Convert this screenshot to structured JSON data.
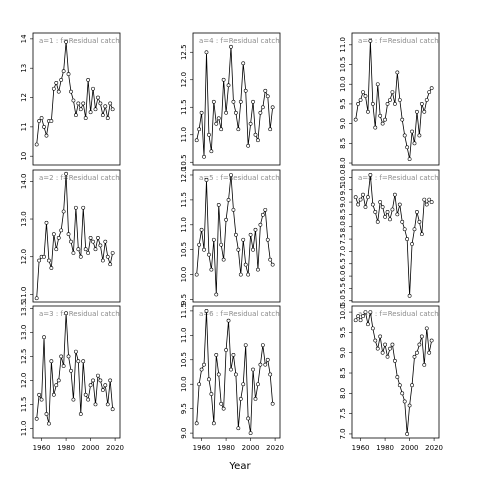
{
  "xlabel": "Year",
  "chart_data": [
    {
      "type": "line",
      "title": "a=1 : f=Residual catch",
      "color": "#000000",
      "x": [
        1956,
        1958,
        1960,
        1962,
        1964,
        1966,
        1968,
        1970,
        1972,
        1974,
        1976,
        1978,
        1980,
        1982,
        1984,
        1986,
        1988,
        1990,
        1992,
        1994,
        1996,
        1998,
        2000,
        2002,
        2004,
        2006,
        2008,
        2010,
        2012,
        2014,
        2016,
        2018
      ],
      "values": [
        10.4,
        11.2,
        11.3,
        11.0,
        10.7,
        11.2,
        11.2,
        12.3,
        12.5,
        12.2,
        12.6,
        12.9,
        13.9,
        12.8,
        12.2,
        11.9,
        11.4,
        11.8,
        11.6,
        11.8,
        11.3,
        12.6,
        11.5,
        12.3,
        11.6,
        12.0,
        11.8,
        11.4,
        11.7,
        11.3,
        11.8,
        11.6
      ],
      "xlim": [
        1953,
        2024
      ],
      "ylim": [
        9.7,
        14.2
      ],
      "yticks": [
        10,
        11,
        12,
        13,
        14
      ]
    },
    {
      "type": "line",
      "title": "a=2 : f=Residual catch",
      "color": "#000000",
      "x": [
        1956,
        1958,
        1960,
        1962,
        1964,
        1966,
        1968,
        1970,
        1972,
        1974,
        1976,
        1978,
        1980,
        1982,
        1984,
        1986,
        1988,
        1990,
        1992,
        1994,
        1996,
        1998,
        2000,
        2002,
        2004,
        2006,
        2008,
        2010,
        2012,
        2014,
        2016,
        2018
      ],
      "values": [
        10.9,
        11.9,
        12.0,
        12.0,
        12.9,
        11.9,
        11.7,
        12.6,
        12.2,
        12.5,
        12.7,
        13.2,
        14.2,
        12.6,
        12.4,
        12.1,
        13.3,
        12.2,
        12.0,
        13.3,
        12.2,
        12.1,
        12.5,
        12.4,
        12.2,
        12.5,
        12.3,
        11.9,
        12.4,
        12.0,
        11.8,
        12.1
      ],
      "xlim": [
        1953,
        2024
      ],
      "ylim": [
        10.8,
        14.3
      ],
      "yticks": [
        {
          "value": 11,
          "label": "11.0"
        },
        {
          "value": 12,
          "label": "12.0"
        },
        {
          "value": 13,
          "label": "13.0"
        },
        {
          "value": 14,
          "label": "14.0"
        }
      ]
    },
    {
      "type": "line",
      "title": "a=3 : f=Residual catch",
      "color": "#000000",
      "x": [
        1956,
        1958,
        1960,
        1962,
        1964,
        1966,
        1968,
        1970,
        1972,
        1974,
        1976,
        1978,
        1980,
        1982,
        1984,
        1986,
        1988,
        1990,
        1992,
        1994,
        1996,
        1998,
        2000,
        2002,
        2004,
        2006,
        2008,
        2010,
        2012,
        2014,
        2016,
        2018
      ],
      "values": [
        11.2,
        11.7,
        11.6,
        12.9,
        11.3,
        11.1,
        12.4,
        11.7,
        11.9,
        12.0,
        12.5,
        12.3,
        13.4,
        12.5,
        12.2,
        11.6,
        12.6,
        12.4,
        11.3,
        12.4,
        11.7,
        11.6,
        11.9,
        12.0,
        11.5,
        12.1,
        12.0,
        11.8,
        11.9,
        11.5,
        12.0,
        11.4
      ],
      "xlim": [
        1953,
        2024
      ],
      "ylim": [
        10.8,
        13.55
      ],
      "yticks": [
        {
          "value": 11,
          "label": "11.0"
        },
        11.5,
        {
          "value": 12,
          "label": "12.0"
        },
        12.5,
        {
          "value": 13,
          "label": "13.0"
        },
        13.5
      ],
      "xticks": [
        1960,
        1980,
        2000,
        2020
      ]
    },
    {
      "type": "line",
      "title": "a=4 : f=Residual catch",
      "color": "#000000",
      "x": [
        1956,
        1958,
        1960,
        1962,
        1964,
        1966,
        1968,
        1970,
        1972,
        1974,
        1976,
        1978,
        1980,
        1982,
        1984,
        1986,
        1988,
        1990,
        1992,
        1994,
        1996,
        1998,
        2000,
        2002,
        2004,
        2006,
        2008,
        2010,
        2012,
        2014,
        2016,
        2018
      ],
      "values": [
        10.9,
        11.1,
        11.4,
        10.6,
        12.5,
        11.0,
        10.7,
        11.6,
        11.2,
        11.3,
        11.1,
        12.0,
        11.4,
        11.9,
        12.6,
        11.6,
        11.4,
        11.1,
        11.6,
        12.3,
        11.8,
        10.8,
        11.2,
        11.6,
        11.0,
        10.9,
        11.4,
        11.5,
        11.8,
        11.7,
        11.1,
        11.5
      ],
      "xlim": [
        1953,
        2024
      ],
      "ylim": [
        10.45,
        12.85
      ],
      "yticks": [
        10.5,
        {
          "value": 11,
          "label": "11.0"
        },
        11.5,
        {
          "value": 12,
          "label": "12.0"
        },
        12.5
      ]
    },
    {
      "type": "line",
      "title": "a=5 : f=Residual catch",
      "color": "#000000",
      "x": [
        1956,
        1958,
        1960,
        1962,
        1964,
        1966,
        1968,
        1970,
        1972,
        1974,
        1976,
        1978,
        1980,
        1982,
        1984,
        1986,
        1988,
        1990,
        1992,
        1994,
        1996,
        1998,
        2000,
        2002,
        2004,
        2006,
        2008,
        2010,
        2012,
        2014,
        2016,
        2018
      ],
      "values": [
        10.0,
        10.6,
        10.9,
        10.5,
        11.9,
        10.4,
        10.1,
        10.7,
        9.6,
        11.4,
        10.6,
        10.3,
        11.1,
        11.5,
        12.0,
        11.3,
        10.8,
        10.5,
        10.0,
        10.7,
        10.2,
        10.0,
        10.8,
        10.5,
        10.9,
        10.1,
        11.0,
        11.2,
        11.3,
        10.7,
        10.3,
        10.2
      ],
      "xlim": [
        1953,
        2024
      ],
      "ylim": [
        9.45,
        12.1
      ],
      "yticks": [
        9.5,
        {
          "value": 10,
          "label": "10.0"
        },
        10.5,
        {
          "value": 11,
          "label": "11.0"
        },
        11.5,
        {
          "value": 12,
          "label": "12.0"
        }
      ]
    },
    {
      "type": "line",
      "title": "a=6 : f=Residual catch",
      "color": "#000000",
      "x": [
        1956,
        1958,
        1960,
        1962,
        1964,
        1966,
        1968,
        1970,
        1972,
        1974,
        1976,
        1978,
        1980,
        1982,
        1984,
        1986,
        1988,
        1990,
        1992,
        1994,
        1996,
        1998,
        2000,
        2002,
        2004,
        2006,
        2008,
        2010,
        2012,
        2014,
        2016,
        2018
      ],
      "values": [
        9.2,
        10.0,
        10.3,
        10.4,
        11.5,
        10.1,
        9.8,
        9.2,
        10.6,
        10.2,
        9.6,
        9.5,
        10.7,
        11.3,
        10.3,
        10.6,
        10.2,
        9.1,
        9.7,
        10.0,
        10.8,
        9.3,
        9.0,
        10.3,
        9.7,
        10.0,
        10.4,
        10.8,
        10.4,
        10.5,
        10.2,
        9.6
      ],
      "xlim": [
        1953,
        2024
      ],
      "ylim": [
        8.9,
        11.6
      ],
      "yticks": [
        {
          "value": 9,
          "label": "9.0"
        },
        9.5,
        {
          "value": 10,
          "label": "10.0"
        },
        10.5,
        {
          "value": 11,
          "label": "11.0"
        },
        11.5
      ],
      "xticks": [
        1960,
        1980,
        2000,
        2020
      ]
    },
    {
      "type": "line",
      "title": "a=7 : f=Residual catch",
      "color": "#000000",
      "x": [
        1956,
        1958,
        1960,
        1962,
        1964,
        1966,
        1968,
        1970,
        1972,
        1974,
        1976,
        1978,
        1980,
        1982,
        1984,
        1986,
        1988,
        1990,
        1992,
        1994,
        1996,
        1998,
        2000,
        2002,
        2004,
        2006,
        2008,
        2010,
        2012,
        2014,
        2016,
        2018
      ],
      "values": [
        9.1,
        9.5,
        9.6,
        9.8,
        9.7,
        9.3,
        11.1,
        9.5,
        8.9,
        10.0,
        9.2,
        9.0,
        9.1,
        9.5,
        9.6,
        9.8,
        9.5,
        10.3,
        9.6,
        9.1,
        8.7,
        8.4,
        8.1,
        8.8,
        8.5,
        9.3,
        8.7,
        9.5,
        9.3,
        9.6,
        9.8,
        9.9
      ],
      "xlim": [
        1953,
        2024
      ],
      "ylim": [
        7.95,
        11.3
      ],
      "yticks": [
        {
          "value": 8,
          "label": "8.0"
        },
        8.5,
        {
          "value": 9,
          "label": "9.0"
        },
        9.5,
        {
          "value": 10,
          "label": "10.0"
        },
        10.5,
        {
          "value": 11,
          "label": "11.0"
        }
      ]
    },
    {
      "type": "line",
      "title": "a=8 : f=Residual catch",
      "color": "#000000",
      "x": [
        1956,
        1958,
        1960,
        1962,
        1964,
        1966,
        1968,
        1970,
        1972,
        1974,
        1976,
        1978,
        1980,
        1982,
        1984,
        1986,
        1988,
        1990,
        1992,
        1994,
        1996,
        1998,
        2000,
        2002,
        2004,
        2006,
        2008,
        2010,
        2012,
        2014,
        2016,
        2018
      ],
      "values": [
        9.2,
        8.9,
        9.1,
        9.3,
        8.8,
        9.2,
        10.1,
        8.9,
        8.6,
        8.2,
        9.0,
        8.8,
        8.4,
        8.6,
        8.3,
        8.7,
        9.3,
        8.5,
        8.9,
        8.2,
        7.9,
        7.5,
        5.2,
        7.3,
        7.9,
        8.6,
        8.2,
        7.7,
        9.1,
        8.9,
        9.1,
        9.0
      ],
      "xlim": [
        1953,
        2024
      ],
      "ylim": [
        4.95,
        10.3
      ],
      "yticks": [
        {
          "value": 5,
          "label": "5.0"
        },
        5.5,
        {
          "value": 6,
          "label": "6.0"
        },
        6.5,
        {
          "value": 7,
          "label": "7.0"
        },
        7.5,
        {
          "value": 8,
          "label": "8.0"
        },
        8.5,
        {
          "value": 9,
          "label": "9.0"
        },
        9.5,
        {
          "value": 10,
          "label": "10.0"
        }
      ]
    },
    {
      "type": "line",
      "title": "a=9 : f=Residual catch",
      "color": "#000000",
      "x": [
        1956,
        1958,
        1960,
        1962,
        1964,
        1966,
        1968,
        1970,
        1972,
        1974,
        1976,
        1978,
        1980,
        1982,
        1984,
        1986,
        1988,
        1990,
        1992,
        1994,
        1996,
        1998,
        2000,
        2002,
        2004,
        2006,
        2008,
        2010,
        2012,
        2014,
        2016,
        2018
      ],
      "values": [
        9.8,
        9.9,
        9.8,
        9.9,
        10.0,
        9.7,
        10.0,
        9.6,
        9.3,
        9.1,
        9.4,
        9.0,
        9.2,
        8.9,
        9.1,
        9.2,
        8.8,
        8.4,
        8.2,
        8.0,
        7.8,
        7.0,
        7.7,
        8.2,
        8.9,
        9.0,
        9.2,
        9.4,
        8.7,
        9.6,
        9.0,
        9.3
      ],
      "xlim": [
        1953,
        2024
      ],
      "ylim": [
        6.9,
        10.15
      ],
      "yticks": [
        {
          "value": 7,
          "label": "7.0"
        },
        7.5,
        {
          "value": 8,
          "label": "8.0"
        },
        8.5,
        {
          "value": 9,
          "label": "9.0"
        },
        9.5,
        {
          "value": 10,
          "label": "10.0"
        }
      ],
      "xticks": [
        1960,
        1980,
        2000,
        2020
      ]
    }
  ]
}
